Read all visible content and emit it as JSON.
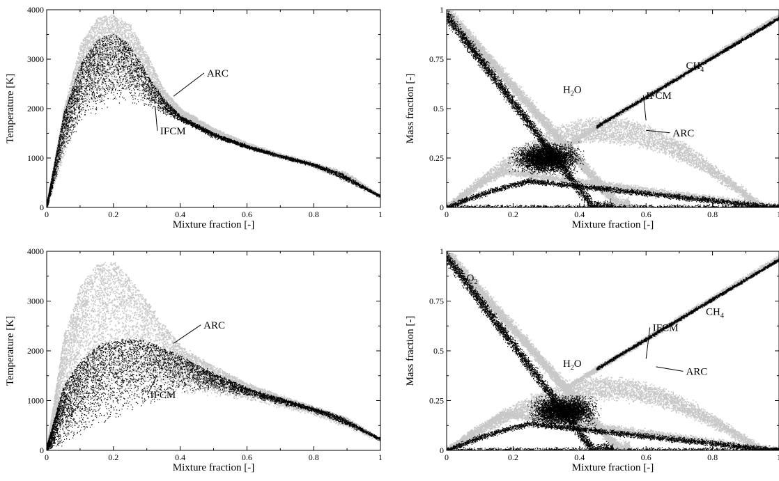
{
  "chart_data": [
    {
      "type": "scatter",
      "panel": "top-left",
      "xlabel": "Mixture fraction [-]",
      "ylabel": "Temperature [K]",
      "xlim": [
        0,
        1
      ],
      "ylim": [
        0,
        4000
      ],
      "xticks": [
        0,
        0.2,
        0.4,
        0.6,
        0.8,
        1
      ],
      "xtick_labels": [
        "0",
        "0.2",
        "0.4",
        "0.6",
        "0.8",
        "1"
      ],
      "yticks": [
        0,
        1000,
        2000,
        3000,
        4000
      ],
      "ytick_labels": [
        "0",
        "1000",
        "2000",
        "3000",
        "4000"
      ],
      "grid": false,
      "series": [
        {
          "name": "ARC",
          "color": "#c8c8c8",
          "curve": [
            [
              0,
              100
            ],
            [
              0.05,
              2000
            ],
            [
              0.1,
              3300
            ],
            [
              0.15,
              3850
            ],
            [
              0.2,
              3900
            ],
            [
              0.25,
              3700
            ],
            [
              0.3,
              3100
            ],
            [
              0.35,
              2400
            ],
            [
              0.4,
              2000
            ],
            [
              0.5,
              1600
            ],
            [
              0.6,
              1300
            ],
            [
              0.7,
              1080
            ],
            [
              0.8,
              900
            ],
            [
              0.9,
              700
            ],
            [
              1,
              230
            ]
          ],
          "spread_low": [
            [
              0,
              0
            ],
            [
              0.05,
              1000
            ],
            [
              0.1,
              1900
            ],
            [
              0.15,
              2200
            ],
            [
              0.2,
              2300
            ],
            [
              0.3,
              2200
            ],
            [
              0.4,
              1800
            ],
            [
              0.5,
              1450
            ],
            [
              0.6,
              1200
            ],
            [
              0.8,
              820
            ],
            [
              1,
              210
            ]
          ]
        },
        {
          "name": "IFCM",
          "color": "#000000",
          "curve": [
            [
              0,
              100
            ],
            [
              0.05,
              1900
            ],
            [
              0.1,
              2900
            ],
            [
              0.15,
              3400
            ],
            [
              0.2,
              3520
            ],
            [
              0.25,
              3300
            ],
            [
              0.3,
              2700
            ],
            [
              0.35,
              2200
            ],
            [
              0.4,
              1850
            ],
            [
              0.5,
              1500
            ],
            [
              0.6,
              1250
            ],
            [
              0.7,
              1050
            ],
            [
              0.8,
              880
            ],
            [
              0.88,
              700
            ],
            [
              1,
              230
            ]
          ],
          "spread_low": [
            [
              0,
              0
            ],
            [
              0.05,
              1100
            ],
            [
              0.1,
              1700
            ],
            [
              0.15,
              1900
            ],
            [
              0.2,
              2100
            ],
            [
              0.3,
              2050
            ],
            [
              0.4,
              1750
            ],
            [
              0.5,
              1420
            ],
            [
              0.6,
              1200
            ],
            [
              0.8,
              840
            ],
            [
              1,
              220
            ]
          ]
        }
      ],
      "annotations": [
        {
          "text": "ARC",
          "x": 0.48,
          "y": 2650,
          "pointer": [
            0.38,
            2250
          ]
        },
        {
          "text": "IFCM",
          "x": 0.34,
          "y": 1480,
          "pointer": [
            0.325,
            2050
          ]
        }
      ]
    },
    {
      "type": "scatter",
      "panel": "top-right",
      "xlabel": "Mixture fraction [-]",
      "ylabel": "Mass fraction [-]",
      "xlim": [
        0,
        1
      ],
      "ylim": [
        0,
        1
      ],
      "xticks": [
        0,
        0.2,
        0.4,
        0.6,
        0.8,
        1
      ],
      "xtick_labels": [
        "0",
        "0.2",
        "0.4",
        "0.6",
        "0.8",
        "1"
      ],
      "yticks": [
        0,
        0.25,
        0.5,
        0.75,
        1
      ],
      "ytick_labels": [
        "0",
        "0.25",
        "0.5",
        "0.75",
        "1"
      ],
      "grid": false,
      "series": [
        {
          "name": "ARC",
          "color": "#c8c8c8"
        },
        {
          "name": "IFCM",
          "color": "#000000"
        }
      ],
      "species": [
        {
          "label": "O",
          "sub": "2",
          "x": 0.06,
          "y": 0.78
        },
        {
          "label": "H",
          "sub": "2",
          "label2": "O",
          "x": 0.35,
          "y": 0.58
        },
        {
          "label": "CH",
          "sub": "4",
          "x": 0.72,
          "y": 0.7
        }
      ],
      "annotations": [
        {
          "text": "IFCM",
          "x": 0.6,
          "y": 0.55,
          "pointer": [
            0.6,
            0.44
          ]
        },
        {
          "text": "ARC",
          "x": 0.68,
          "y": 0.36,
          "pointer": [
            0.6,
            0.39
          ]
        }
      ]
    },
    {
      "type": "scatter",
      "panel": "bottom-left",
      "xlabel": "Mixture fraction [-]",
      "ylabel": "Temperature [K]",
      "xlim": [
        0,
        1
      ],
      "ylim": [
        0,
        4000
      ],
      "xticks": [
        0,
        0.2,
        0.4,
        0.6,
        0.8,
        1
      ],
      "xtick_labels": [
        "0",
        "0.2",
        "0.4",
        "0.6",
        "0.8",
        "1"
      ],
      "yticks": [
        0,
        1000,
        2000,
        3000,
        4000
      ],
      "ytick_labels": [
        "0",
        "1000",
        "2000",
        "3000",
        "4000"
      ],
      "grid": false,
      "series": [
        {
          "name": "ARC",
          "color": "#c8c8c8",
          "curve": [
            [
              0,
              100
            ],
            [
              0.05,
              2300
            ],
            [
              0.1,
              3300
            ],
            [
              0.15,
              3750
            ],
            [
              0.2,
              3800
            ],
            [
              0.25,
              3450
            ],
            [
              0.3,
              3000
            ],
            [
              0.35,
              2550
            ],
            [
              0.4,
              2100
            ],
            [
              0.5,
              1700
            ],
            [
              0.6,
              1350
            ],
            [
              0.7,
              1100
            ],
            [
              0.8,
              880
            ],
            [
              0.9,
              650
            ],
            [
              1,
              230
            ]
          ],
          "spread_low": [
            [
              0,
              0
            ],
            [
              0.05,
              500
            ],
            [
              0.1,
              800
            ],
            [
              0.2,
              1000
            ],
            [
              0.3,
              1100
            ],
            [
              0.4,
              1150
            ],
            [
              0.5,
              1100
            ],
            [
              0.6,
              1000
            ],
            [
              0.8,
              720
            ],
            [
              1,
              200
            ]
          ]
        },
        {
          "name": "IFCM",
          "color": "#000000",
          "curve": [
            [
              0,
              100
            ],
            [
              0.05,
              1300
            ],
            [
              0.1,
              1800
            ],
            [
              0.15,
              2100
            ],
            [
              0.2,
              2200
            ],
            [
              0.25,
              2250
            ],
            [
              0.3,
              2200
            ],
            [
              0.4,
              1900
            ],
            [
              0.5,
              1550
            ],
            [
              0.6,
              1250
            ],
            [
              0.7,
              1050
            ],
            [
              0.8,
              850
            ],
            [
              0.88,
              680
            ],
            [
              1,
              230
            ]
          ],
          "spread_low": [
            [
              0,
              0
            ],
            [
              0.05,
              100
            ],
            [
              0.1,
              300
            ],
            [
              0.2,
              600
            ],
            [
              0.3,
              900
            ],
            [
              0.4,
              1150
            ],
            [
              0.5,
              1200
            ],
            [
              0.6,
              1100
            ],
            [
              0.8,
              780
            ],
            [
              1,
              220
            ]
          ]
        }
      ],
      "annotations": [
        {
          "text": "ARC",
          "x": 0.47,
          "y": 2450,
          "pointer": [
            0.38,
            2150
          ]
        },
        {
          "text": "IFCM",
          "x": 0.31,
          "y": 1050,
          "pointer": [
            0.33,
            1500
          ]
        }
      ]
    },
    {
      "type": "scatter",
      "panel": "bottom-right",
      "xlabel": "Mixture fraction [-]",
      "ylabel": "Mass fraction [-]",
      "xlim": [
        0,
        1
      ],
      "ylim": [
        0,
        1
      ],
      "xticks": [
        0,
        0.2,
        0.4,
        0.6,
        0.8,
        1
      ],
      "xtick_labels": [
        "0",
        "0.2",
        "0.4",
        "0.6",
        "0.8",
        "1"
      ],
      "yticks": [
        0,
        0.25,
        0.5,
        0.75,
        1
      ],
      "ytick_labels": [
        "0",
        "0.25",
        "0.5",
        "0.75",
        "1"
      ],
      "grid": false,
      "series": [
        {
          "name": "ARC",
          "color": "#c8c8c8"
        },
        {
          "name": "IFCM",
          "color": "#000000"
        }
      ],
      "species": [
        {
          "label": "O",
          "sub": "2",
          "x": 0.06,
          "y": 0.85
        },
        {
          "label": "H",
          "sub": "2",
          "label2": "O",
          "x": 0.35,
          "y": 0.42
        },
        {
          "label": "CH",
          "sub": "4",
          "x": 0.78,
          "y": 0.68
        }
      ],
      "annotations": [
        {
          "text": "IFCM",
          "x": 0.62,
          "y": 0.6,
          "pointer": [
            0.6,
            0.46
          ]
        },
        {
          "text": "ARC",
          "x": 0.72,
          "y": 0.38,
          "pointer": [
            0.63,
            0.42
          ]
        }
      ]
    }
  ]
}
